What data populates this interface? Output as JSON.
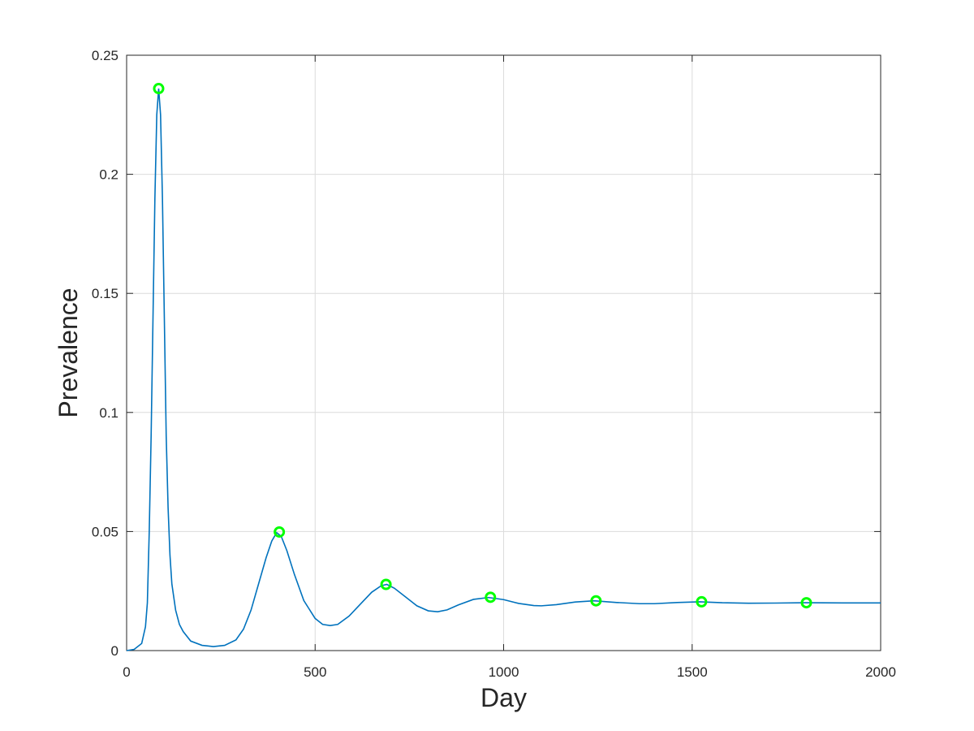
{
  "chart_data": {
    "type": "line",
    "title": "",
    "xlabel": "Day",
    "ylabel": "Prevalence",
    "xlim": [
      0,
      2000
    ],
    "ylim": [
      0,
      0.25
    ],
    "x_ticks": [
      0,
      500,
      1000,
      1500,
      2000
    ],
    "x_tick_labels": [
      "0",
      "500",
      "1000",
      "1500",
      "2000"
    ],
    "y_ticks": [
      0,
      0.05,
      0.1,
      0.15,
      0.2,
      0.25
    ],
    "y_tick_labels": [
      "0",
      "0.05",
      "0.1",
      "0.15",
      "0.2",
      "0.25"
    ],
    "grid": true,
    "legend": "none",
    "series": [
      {
        "color": "#0072BD",
        "points": [
          [
            0,
            0
          ],
          [
            20,
            0.0005
          ],
          [
            40,
            0.003
          ],
          [
            50,
            0.01
          ],
          [
            55,
            0.02
          ],
          [
            60,
            0.05
          ],
          [
            65,
            0.09
          ],
          [
            70,
            0.14
          ],
          [
            75,
            0.19
          ],
          [
            80,
            0.225
          ],
          [
            85,
            0.236
          ],
          [
            90,
            0.225
          ],
          [
            95,
            0.19
          ],
          [
            100,
            0.14
          ],
          [
            105,
            0.09
          ],
          [
            110,
            0.06
          ],
          [
            115,
            0.04
          ],
          [
            120,
            0.028
          ],
          [
            130,
            0.017
          ],
          [
            140,
            0.011
          ],
          [
            150,
            0.008
          ],
          [
            170,
            0.004
          ],
          [
            200,
            0.0022
          ],
          [
            230,
            0.0017
          ],
          [
            260,
            0.0022
          ],
          [
            290,
            0.0045
          ],
          [
            310,
            0.009
          ],
          [
            330,
            0.017
          ],
          [
            350,
            0.028
          ],
          [
            370,
            0.039
          ],
          [
            385,
            0.046
          ],
          [
            398,
            0.0495
          ],
          [
            410,
            0.048
          ],
          [
            425,
            0.042
          ],
          [
            445,
            0.032
          ],
          [
            470,
            0.021
          ],
          [
            500,
            0.0135
          ],
          [
            520,
            0.011
          ],
          [
            540,
            0.0105
          ],
          [
            560,
            0.011
          ],
          [
            590,
            0.0145
          ],
          [
            620,
            0.0195
          ],
          [
            650,
            0.0245
          ],
          [
            675,
            0.0272
          ],
          [
            690,
            0.0278
          ],
          [
            710,
            0.0262
          ],
          [
            740,
            0.0225
          ],
          [
            770,
            0.0188
          ],
          [
            800,
            0.0167
          ],
          [
            825,
            0.0163
          ],
          [
            850,
            0.0171
          ],
          [
            880,
            0.0192
          ],
          [
            920,
            0.0215
          ],
          [
            960,
            0.0223
          ],
          [
            1000,
            0.0214
          ],
          [
            1040,
            0.0198
          ],
          [
            1080,
            0.0189
          ],
          [
            1100,
            0.0188
          ],
          [
            1140,
            0.0193
          ],
          [
            1190,
            0.0204
          ],
          [
            1240,
            0.0209
          ],
          [
            1300,
            0.0202
          ],
          [
            1360,
            0.0197
          ],
          [
            1400,
            0.0197
          ],
          [
            1460,
            0.0202
          ],
          [
            1520,
            0.0205
          ],
          [
            1580,
            0.0201
          ],
          [
            1650,
            0.0199
          ],
          [
            1720,
            0.01995
          ],
          [
            1800,
            0.0201
          ],
          [
            1900,
            0.02
          ],
          [
            2000,
            0.02
          ]
        ]
      }
    ],
    "peaks": {
      "color": "#00FF00",
      "marker": "circle",
      "x": [
        85,
        405,
        688,
        965,
        1245,
        1525,
        1803
      ],
      "y": [
        0.236,
        0.0498,
        0.0278,
        0.0224,
        0.0209,
        0.0205,
        0.0201
      ]
    }
  }
}
